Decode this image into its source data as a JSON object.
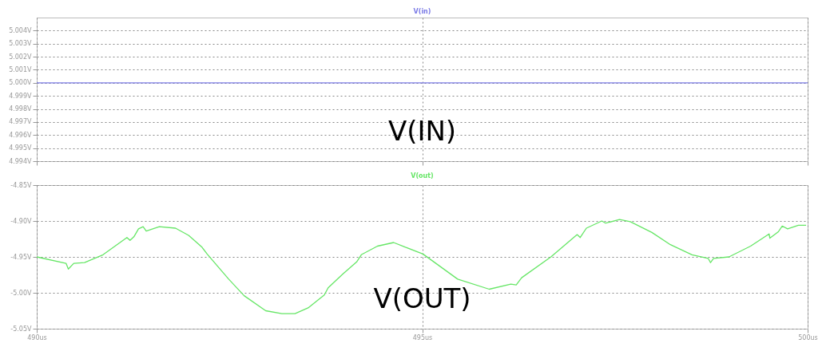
{
  "chart_data": [
    {
      "type": "line",
      "x": [
        490,
        500
      ],
      "series": [
        {
          "name": "V(in)",
          "color": "#7b7be6",
          "values": [
            5.0,
            5.0
          ]
        }
      ],
      "xlim": [
        490,
        500
      ],
      "xticks": [
        490,
        495,
        500
      ],
      "ylim": [
        4.994,
        5.005
      ],
      "yticks": [
        {
          "value": 4.994,
          "label": "4.994V"
        },
        {
          "value": 4.995,
          "label": "4.995V"
        },
        {
          "value": 4.996,
          "label": "4.996V"
        },
        {
          "value": 4.997,
          "label": "4.997V"
        },
        {
          "value": 4.998,
          "label": "4.998V"
        },
        {
          "value": 4.999,
          "label": "4.999V"
        },
        {
          "value": 5.0,
          "label": "5.000V"
        },
        {
          "value": 5.001,
          "label": "5.001V"
        },
        {
          "value": 5.002,
          "label": "5.002V"
        },
        {
          "value": 5.003,
          "label": "5.003V"
        },
        {
          "value": 5.004,
          "label": "5.004V"
        }
      ],
      "tick_labels": "y",
      "grid": true,
      "line_style": "solid",
      "annotations": [
        "V(IN)"
      ]
    },
    {
      "type": "line",
      "x": [
        490,
        490.38,
        490.41,
        490.48,
        490.62,
        490.86,
        491.17,
        491.21,
        491.26,
        491.32,
        491.38,
        491.42,
        491.59,
        491.8,
        491.97,
        492.14,
        492.21,
        492.49,
        492.69,
        492.97,
        493.18,
        493.35,
        493.52,
        493.73,
        493.78,
        493.97,
        494.15,
        494.21,
        494.42,
        494.63,
        494.77,
        495.01,
        495.46,
        495.87,
        496.15,
        496.22,
        496.29,
        496.67,
        497.01,
        497.05,
        497.13,
        497.33,
        497.38,
        497.56,
        497.7,
        497.98,
        498.22,
        498.5,
        498.71,
        498.74,
        498.78,
        498.98,
        499.26,
        499.5,
        499.51,
        499.62,
        499.67,
        499.74,
        499.88,
        499.98
      ],
      "series": [
        {
          "name": "V(out)",
          "color": "#66e666",
          "values": [
            -4.95,
            -4.959,
            -4.967,
            -4.959,
            -4.958,
            -4.947,
            -4.923,
            -4.927,
            -4.922,
            -4.911,
            -4.908,
            -4.914,
            -4.908,
            -4.91,
            -4.92,
            -4.936,
            -4.946,
            -4.981,
            -5.004,
            -5.025,
            -5.029,
            -5.029,
            -5.021,
            -5.003,
            -4.993,
            -4.974,
            -4.957,
            -4.947,
            -4.935,
            -4.93,
            -4.936,
            -4.946,
            -4.981,
            -4.995,
            -4.988,
            -4.989,
            -4.979,
            -4.95,
            -4.919,
            -4.923,
            -4.91,
            -4.9,
            -4.903,
            -4.898,
            -4.901,
            -4.916,
            -4.933,
            -4.947,
            -4.952,
            -4.958,
            -4.952,
            -4.95,
            -4.935,
            -4.918,
            -4.924,
            -4.915,
            -4.907,
            -4.911,
            -4.906,
            -4.906
          ]
        }
      ],
      "xlim": [
        490,
        500
      ],
      "xticks": [
        {
          "value": 490,
          "label": "490us"
        },
        {
          "value": 495,
          "label": "495us"
        },
        {
          "value": 500,
          "label": "500us"
        }
      ],
      "ylim": [
        -5.05,
        -4.85
      ],
      "yticks": [
        {
          "value": -5.05,
          "label": "-5.05V"
        },
        {
          "value": -5.0,
          "label": "-5.00V"
        },
        {
          "value": -4.95,
          "label": "-4.95V"
        },
        {
          "value": -4.9,
          "label": "-4.90V"
        },
        {
          "value": -4.85,
          "label": "-4.85V"
        }
      ],
      "grid": true,
      "line_style": "solid",
      "annotations": [
        "V(OUT)"
      ]
    }
  ]
}
